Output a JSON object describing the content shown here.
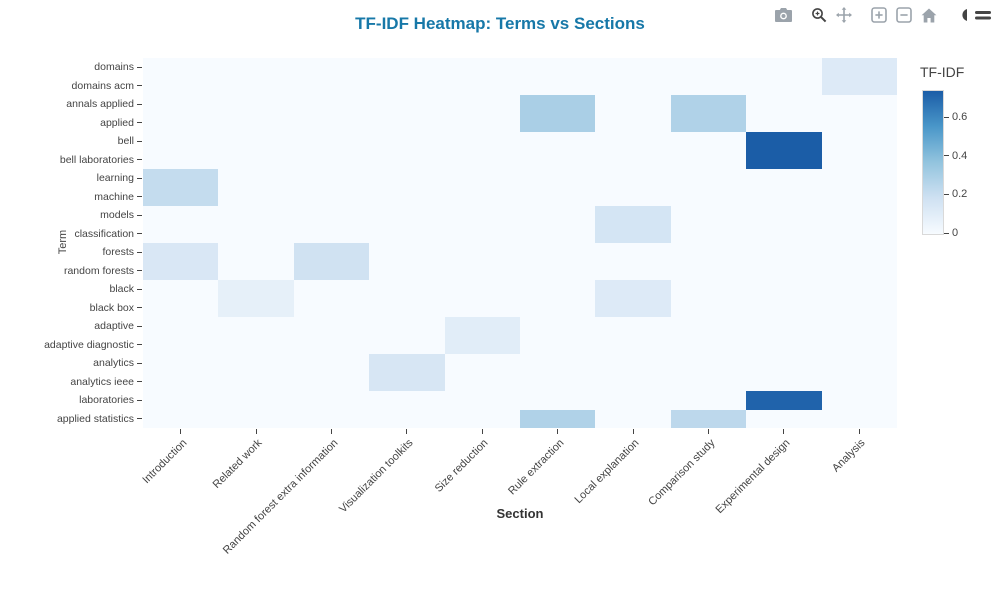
{
  "colors": {
    "title": "#1778a8",
    "axis_text": "#444444",
    "modebar_icon": "#9ba3ab",
    "modebar_icon_dark": "#444444",
    "colorbar_border": "#d9d9d9"
  },
  "modebar": {
    "buttons": [
      "camera-icon",
      "zoom-icon",
      "pan-icon",
      "zoom-in-icon",
      "zoom-out-icon",
      "home-icon",
      "plotly-logo-icon"
    ]
  },
  "chart_data": {
    "type": "heatmap",
    "title": "TF-IDF Heatmap: Terms vs Sections",
    "xlabel": "Section",
    "ylabel": "Term",
    "colorbar_title": "TF-IDF",
    "colorbar_ticks": [
      0,
      0.2,
      0.4,
      0.6
    ],
    "zmin": 0,
    "zmax": 0.74,
    "legend_position": "right",
    "grid": false,
    "colorscale": [
      [
        0,
        "#f7fbff"
      ],
      [
        0.25,
        "#cfe1f2"
      ],
      [
        0.5,
        "#93c4de"
      ],
      [
        0.75,
        "#4a97c9"
      ],
      [
        1,
        "#1b5da7"
      ]
    ],
    "x": [
      "Introduction",
      "Related work",
      "Random forest extra information",
      "Visualization toolkits",
      "Size reduction",
      "Rule extraction",
      "Local explanation",
      "Comparison study",
      "Experimental design",
      "Analysis"
    ],
    "y": [
      "domains",
      "domains acm",
      "annals applied",
      "applied",
      "bell",
      "bell laboratories",
      "learning",
      "machine",
      "models",
      "classification",
      "forests",
      "random forests",
      "black",
      "black box",
      "adaptive",
      "adaptive diagnostic",
      "analytics",
      "analytics ieee",
      "laboratories",
      "applied statistics"
    ],
    "z": [
      [
        0,
        0,
        0,
        0,
        0,
        0,
        0,
        0,
        0,
        0.12
      ],
      [
        0,
        0,
        0,
        0,
        0,
        0,
        0,
        0,
        0,
        0.12
      ],
      [
        0,
        0,
        0,
        0,
        0,
        0.3,
        0,
        0.28,
        0,
        0
      ],
      [
        0,
        0,
        0,
        0,
        0,
        0.3,
        0,
        0.28,
        0,
        0
      ],
      [
        0,
        0,
        0,
        0,
        0,
        0,
        0,
        0,
        0.74,
        0
      ],
      [
        0,
        0,
        0,
        0,
        0,
        0,
        0,
        0,
        0.74,
        0
      ],
      [
        0.22,
        0,
        0,
        0,
        0,
        0,
        0,
        0,
        0,
        0
      ],
      [
        0.22,
        0,
        0,
        0,
        0,
        0,
        0,
        0,
        0,
        0
      ],
      [
        0,
        0,
        0,
        0,
        0,
        0,
        0.16,
        0,
        0,
        0
      ],
      [
        0,
        0,
        0,
        0,
        0,
        0,
        0.16,
        0,
        0,
        0
      ],
      [
        0.14,
        0,
        0.18,
        0,
        0,
        0,
        0,
        0,
        0,
        0
      ],
      [
        0.14,
        0,
        0.18,
        0,
        0,
        0,
        0,
        0,
        0,
        0
      ],
      [
        0,
        0.08,
        0,
        0,
        0,
        0,
        0.12,
        0,
        0,
        0
      ],
      [
        0,
        0.08,
        0,
        0,
        0,
        0,
        0.12,
        0,
        0,
        0
      ],
      [
        0,
        0,
        0,
        0,
        0.1,
        0,
        0,
        0,
        0,
        0
      ],
      [
        0,
        0,
        0,
        0,
        0.1,
        0,
        0,
        0,
        0,
        0
      ],
      [
        0,
        0,
        0,
        0.15,
        0,
        0,
        0,
        0,
        0,
        0
      ],
      [
        0,
        0,
        0,
        0.15,
        0,
        0,
        0,
        0,
        0,
        0
      ],
      [
        0,
        0,
        0,
        0,
        0,
        0,
        0,
        0,
        0.72,
        0
      ],
      [
        0,
        0,
        0,
        0,
        0,
        0.28,
        0,
        0.24,
        0,
        0
      ]
    ]
  }
}
